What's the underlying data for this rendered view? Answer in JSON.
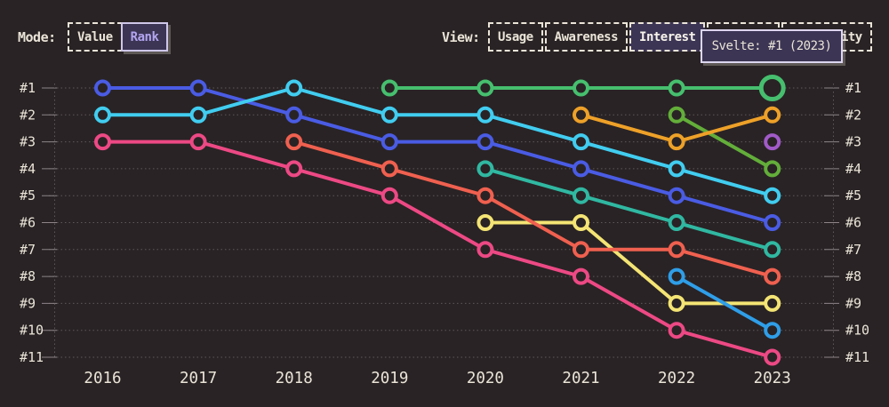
{
  "header": {
    "mode": {
      "label": "Mode:",
      "options": [
        {
          "label": "Value",
          "selected": false
        },
        {
          "label": "Rank",
          "selected": true
        }
      ]
    },
    "view": {
      "label": "View:",
      "options": [
        {
          "label": "Usage",
          "selected": false
        },
        {
          "label": "Awareness",
          "selected": false
        },
        {
          "label": "Interest",
          "selected": true
        },
        {
          "label": "Retention",
          "selected": false
        },
        {
          "label": "Positivity",
          "selected": false
        }
      ]
    }
  },
  "tooltip": {
    "text": "Svelte: #1 (2023)"
  },
  "colors": {
    "background": "#292325",
    "text": "#eae4d8",
    "grid": "#5f585b",
    "tick": "#8d8588",
    "selected_bg": "#3c3554",
    "selected_text": "#b3a4f0",
    "tooltip_border": "#ddd6f0"
  },
  "chart_data": {
    "type": "line",
    "subtype": "bump-rank-chart",
    "x_years": [
      2016,
      2017,
      2018,
      2019,
      2020,
      2021,
      2022,
      2023
    ],
    "rank_labels": [
      "#1",
      "#2",
      "#3",
      "#4",
      "#5",
      "#6",
      "#7",
      "#8",
      "#9",
      "#10",
      "#11"
    ],
    "ylim": [
      1,
      11
    ],
    "grid": "dotted-horizontal",
    "legend": "none",
    "series": [
      {
        "name": "blue",
        "color": "#4a5ce4",
        "points": [
          [
            2016,
            1
          ],
          [
            2017,
            1
          ],
          [
            2018,
            2
          ],
          [
            2019,
            3
          ],
          [
            2020,
            3
          ],
          [
            2021,
            4
          ],
          [
            2022,
            5
          ],
          [
            2023,
            6
          ]
        ]
      },
      {
        "name": "cyan",
        "color": "#41cdf0",
        "points": [
          [
            2016,
            2
          ],
          [
            2017,
            2
          ],
          [
            2018,
            1
          ],
          [
            2019,
            2
          ],
          [
            2020,
            2
          ],
          [
            2021,
            3
          ],
          [
            2022,
            4
          ],
          [
            2023,
            5
          ]
        ]
      },
      {
        "name": "pink",
        "color": "#ed4984",
        "points": [
          [
            2016,
            3
          ],
          [
            2017,
            3
          ],
          [
            2018,
            4
          ],
          [
            2019,
            5
          ],
          [
            2020,
            7
          ],
          [
            2021,
            8
          ],
          [
            2022,
            10
          ],
          [
            2023,
            11
          ]
        ]
      },
      {
        "name": "teal",
        "color": "#30b8a2",
        "points": [
          [
            2020,
            4
          ],
          [
            2021,
            5
          ],
          [
            2022,
            6
          ],
          [
            2023,
            7
          ]
        ]
      },
      {
        "name": "yellow",
        "color": "#f4e474",
        "points": [
          [
            2020,
            6
          ],
          [
            2021,
            6
          ],
          [
            2022,
            9
          ],
          [
            2023,
            9
          ]
        ]
      },
      {
        "name": "coral",
        "color": "#f0604f",
        "points": [
          [
            2018,
            3
          ],
          [
            2019,
            4
          ],
          [
            2020,
            5
          ],
          [
            2021,
            7
          ],
          [
            2022,
            7
          ],
          [
            2023,
            8
          ]
        ]
      },
      {
        "name": "olive",
        "color": "#63ae3a",
        "points": [
          [
            2022,
            2
          ],
          [
            2023,
            4
          ]
        ]
      },
      {
        "name": "orange",
        "color": "#eea128",
        "points": [
          [
            2021,
            2
          ],
          [
            2022,
            3
          ],
          [
            2023,
            2
          ]
        ]
      },
      {
        "name": "azure",
        "color": "#2f9ee8",
        "points": [
          [
            2022,
            8
          ],
          [
            2023,
            10
          ]
        ]
      },
      {
        "name": "purple",
        "color": "#a15bc8",
        "points": [
          [
            2023,
            3
          ]
        ]
      },
      {
        "name": "Svelte",
        "color": "#46bf6e",
        "points": [
          [
            2019,
            1
          ],
          [
            2020,
            1
          ],
          [
            2021,
            1
          ],
          [
            2022,
            1
          ],
          [
            2023,
            1
          ]
        ]
      }
    ],
    "highlight": {
      "series": "Svelte",
      "year": 2023,
      "rank": 1,
      "tooltip": "Svelte: #1 (2023)"
    }
  }
}
